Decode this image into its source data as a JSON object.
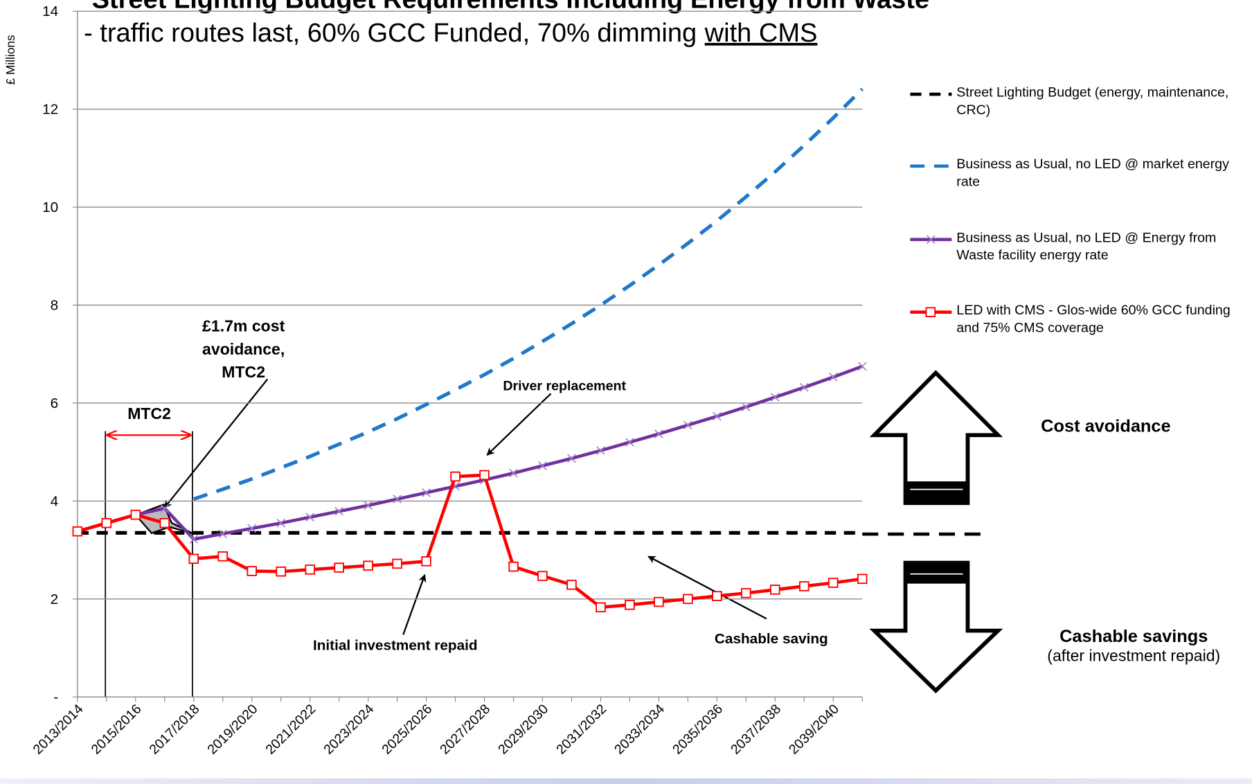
{
  "chart_data": {
    "type": "line",
    "title": "Street Lighting Budget Requirements including Energy from Waste",
    "subtitle": "- traffic routes last, 60% GCC Funded, 70% dimming",
    "subtitle_underlined": "with CMS",
    "y_label": "£ Millions",
    "categories": [
      "2013/2014",
      null,
      "2015/2016",
      null,
      "2017/2018",
      null,
      "2019/2020",
      null,
      "2021/2022",
      null,
      "2023/2024",
      null,
      "2025/2026",
      null,
      "2027/2028",
      null,
      "2029/2030",
      null,
      "2031/2032",
      null,
      "2033/2034",
      null,
      "2035/2036",
      null,
      "2037/2038",
      null,
      "2039/2040",
      null
    ],
    "series": [
      {
        "name": "Street Lighting Budget (energy, maintenance, CRC)",
        "color": "#000000",
        "dash": "14 10",
        "marker": "none",
        "values": [
          3.35,
          3.35,
          3.35,
          3.35,
          3.35,
          3.35,
          3.35,
          3.35,
          3.35,
          3.35,
          3.35,
          3.35,
          3.35,
          3.35,
          3.35,
          3.35,
          3.35,
          3.35,
          3.35,
          3.35,
          3.35,
          3.35,
          3.35,
          3.35,
          3.35,
          3.35,
          3.35,
          3.35
        ]
      },
      {
        "name": "Business as Usual, no LED @ market energy rate",
        "color": "#1f78c8",
        "dash": "18 12",
        "marker": "none",
        "values": [
          null,
          null,
          null,
          null,
          4.04,
          4.24,
          4.45,
          4.68,
          4.91,
          5.16,
          5.41,
          5.68,
          5.97,
          6.27,
          6.58,
          6.91,
          7.26,
          7.62,
          8.0,
          8.4,
          8.82,
          9.26,
          9.72,
          10.21,
          10.72,
          11.26,
          11.82,
          12.41
        ]
      },
      {
        "name": "Business as Usual, no LED @ Energy from Waste facility energy rate",
        "color": "#7030a0",
        "dash": "none",
        "marker": "x",
        "values": [
          3.38,
          3.55,
          3.72,
          3.85,
          3.22,
          3.33,
          3.44,
          3.55,
          3.67,
          3.79,
          3.91,
          4.04,
          4.17,
          4.3,
          4.43,
          4.57,
          4.72,
          4.87,
          5.03,
          5.2,
          5.37,
          5.55,
          5.73,
          5.92,
          6.12,
          6.32,
          6.53,
          6.75
        ]
      },
      {
        "name": "LED with CMS - Glos-wide  60% GCC funding and 75% CMS coverage",
        "color": "#ff0000",
        "dash": "none",
        "marker": "square",
        "values": [
          3.38,
          3.55,
          3.72,
          3.55,
          2.82,
          2.87,
          2.57,
          2.56,
          2.6,
          2.64,
          2.68,
          2.72,
          2.77,
          4.5,
          4.53,
          2.66,
          2.47,
          2.29,
          1.83,
          1.88,
          1.94,
          2.0,
          2.06,
          2.12,
          2.19,
          2.26,
          2.33,
          2.41
        ]
      }
    ],
    "ylim": [
      0,
      14
    ],
    "yticks": [
      {
        "value": 0,
        "label": "-"
      },
      2,
      4,
      6,
      8,
      10,
      12,
      14
    ],
    "grid": true,
    "annotations": {
      "cost_note": "£1.7m cost avoidance, MTC2",
      "mtc2": "MTC2",
      "driver": "Driver replacement",
      "repaid": "Initial investment repaid",
      "cashable_saving": "Cashable saving",
      "cost_avoidance": "Cost avoidance",
      "cashable_savings": "Cashable savings",
      "after_repaid": "(after investment repaid)"
    }
  }
}
